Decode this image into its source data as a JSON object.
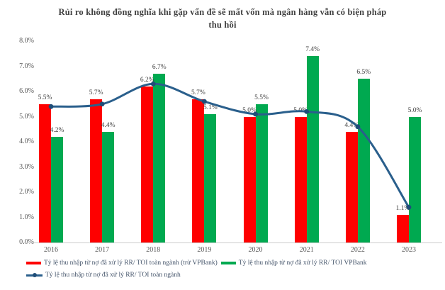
{
  "title": {
    "line1": "Rủi ro không đồng nghĩa khi gặp vấn đề sẽ mất vốn mà ngân hàng vẫn có biện pháp",
    "line2": "thu hồi"
  },
  "chart_data": {
    "type": "bar",
    "subtype": "grouped-bar-with-smoothed-line-overlay",
    "categories": [
      "2016",
      "2017",
      "2018",
      "2019",
      "2020",
      "2021",
      "2022",
      "2023"
    ],
    "series": [
      {
        "name": "Tỷ lệ thu nhập từ nợ đã xử lý RR/ TOI toàn ngành (trừ VPBank)",
        "kind": "bar",
        "color": "#fe0000",
        "values": [
          5.5,
          5.7,
          6.2,
          5.7,
          5.0,
          5.0,
          4.4,
          1.1
        ],
        "labels": [
          "5.5%",
          "5.7%",
          "6.2%",
          "5.7%",
          "5.0%",
          "5.0%",
          "4.4%",
          "1.1%"
        ]
      },
      {
        "name": "Tỷ lệ thu nhập từ nợ đã xử lý RR/ TOI VPBank",
        "kind": "bar",
        "color": "#00a950",
        "values": [
          4.2,
          4.4,
          6.7,
          5.1,
          5.5,
          7.4,
          6.5,
          5.0
        ],
        "labels": [
          "4.2%",
          "4.4%",
          "6.7%",
          "5.1%",
          "5.5%",
          "7.4%",
          "6.5%",
          "5.0%"
        ]
      },
      {
        "name": "Tỷ lệ thu nhập từ nợ đã xử lý RR/ TOI toàn ngành",
        "kind": "line",
        "color": "#2a5f8c",
        "marker_color": "#1f4e79",
        "values": [
          5.4,
          5.5,
          6.3,
          5.6,
          5.1,
          5.2,
          4.6,
          1.4
        ],
        "labels": [
          "",
          "",
          "",
          "",
          "",
          "",
          "",
          ""
        ]
      }
    ],
    "xlabel": "",
    "ylabel": "",
    "ylim": [
      0,
      8
    ],
    "ytick_step": 1,
    "yticks": [
      "0.0%",
      "1.0%",
      "2.0%",
      "3.0%",
      "4.0%",
      "5.0%",
      "6.0%",
      "7.0%",
      "8.0%"
    ],
    "grid": false,
    "legend_position": "bottom-left"
  },
  "colors": {
    "background": "#ffffff",
    "axis_line": "#cdcdcd",
    "tick_text": "#595959",
    "data_label_text": "#404040",
    "title_text": "#3f3f3f",
    "legend_text": "#44546a",
    "bar_red": "#fe0000",
    "bar_green": "#00a950",
    "line_blue": "#2a5f8c",
    "line_marker": "#1f4e79"
  }
}
